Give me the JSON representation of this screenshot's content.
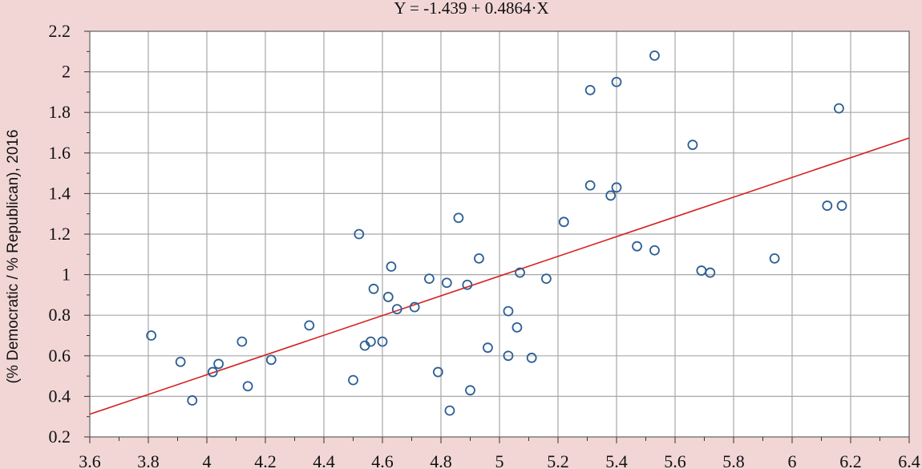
{
  "chart_data": {
    "type": "scatter",
    "title": "Y = -1.439 + 0.4864·X",
    "xlabel": "",
    "ylabel": "(% Democratic / % Republican), 2016",
    "xlim": [
      3.6,
      6.4
    ],
    "ylim": [
      0.2,
      2.2
    ],
    "x_ticks": [
      "3.6",
      "3.8",
      "4",
      "4.2",
      "4.4",
      "4.6",
      "4.8",
      "5",
      "5.2",
      "5.4",
      "5.6",
      "5.8",
      "6",
      "6.2",
      "6.4"
    ],
    "y_ticks": [
      "0.2",
      "0.4",
      "0.6",
      "0.8",
      "1",
      "1.2",
      "1.4",
      "1.6",
      "1.8",
      "2",
      "2.2"
    ],
    "grid": true,
    "regression": {
      "intercept": -1.439,
      "slope": 0.4864,
      "color": "#d42020"
    },
    "colors": {
      "background": "#f2d6d6",
      "plot_area": "#ffffff",
      "points": "#2b5f95",
      "grid": "#a8a8a8"
    },
    "series": [
      {
        "points": [
          {
            "x": 3.81,
            "y": 0.7
          },
          {
            "x": 3.91,
            "y": 0.57
          },
          {
            "x": 3.95,
            "y": 0.38
          },
          {
            "x": 4.02,
            "y": 0.52
          },
          {
            "x": 4.04,
            "y": 0.56
          },
          {
            "x": 4.12,
            "y": 0.67
          },
          {
            "x": 4.14,
            "y": 0.45
          },
          {
            "x": 4.22,
            "y": 0.58
          },
          {
            "x": 4.35,
            "y": 0.75
          },
          {
            "x": 4.5,
            "y": 0.48
          },
          {
            "x": 4.52,
            "y": 1.2
          },
          {
            "x": 4.54,
            "y": 0.65
          },
          {
            "x": 4.56,
            "y": 0.67
          },
          {
            "x": 4.57,
            "y": 0.93
          },
          {
            "x": 4.6,
            "y": 0.67
          },
          {
            "x": 4.62,
            "y": 0.89
          },
          {
            "x": 4.63,
            "y": 1.04
          },
          {
            "x": 4.65,
            "y": 0.83
          },
          {
            "x": 4.71,
            "y": 0.84
          },
          {
            "x": 4.76,
            "y": 0.98
          },
          {
            "x": 4.79,
            "y": 0.52
          },
          {
            "x": 4.82,
            "y": 0.96
          },
          {
            "x": 4.83,
            "y": 0.33
          },
          {
            "x": 4.86,
            "y": 1.28
          },
          {
            "x": 4.89,
            "y": 0.95
          },
          {
            "x": 4.9,
            "y": 0.43
          },
          {
            "x": 4.93,
            "y": 1.08
          },
          {
            "x": 4.96,
            "y": 0.64
          },
          {
            "x": 5.03,
            "y": 0.82
          },
          {
            "x": 5.03,
            "y": 0.6
          },
          {
            "x": 5.06,
            "y": 0.74
          },
          {
            "x": 5.07,
            "y": 1.01
          },
          {
            "x": 5.11,
            "y": 0.59
          },
          {
            "x": 5.16,
            "y": 0.98
          },
          {
            "x": 5.22,
            "y": 1.26
          },
          {
            "x": 5.31,
            "y": 1.91
          },
          {
            "x": 5.31,
            "y": 1.44
          },
          {
            "x": 5.38,
            "y": 1.39
          },
          {
            "x": 5.4,
            "y": 1.95
          },
          {
            "x": 5.4,
            "y": 1.43
          },
          {
            "x": 5.47,
            "y": 1.14
          },
          {
            "x": 5.53,
            "y": 2.08
          },
          {
            "x": 5.53,
            "y": 1.12
          },
          {
            "x": 5.66,
            "y": 1.64
          },
          {
            "x": 5.69,
            "y": 1.02
          },
          {
            "x": 5.72,
            "y": 1.01
          },
          {
            "x": 5.94,
            "y": 1.08
          },
          {
            "x": 6.12,
            "y": 1.34
          },
          {
            "x": 6.16,
            "y": 1.82
          },
          {
            "x": 6.17,
            "y": 1.34
          }
        ]
      }
    ]
  }
}
